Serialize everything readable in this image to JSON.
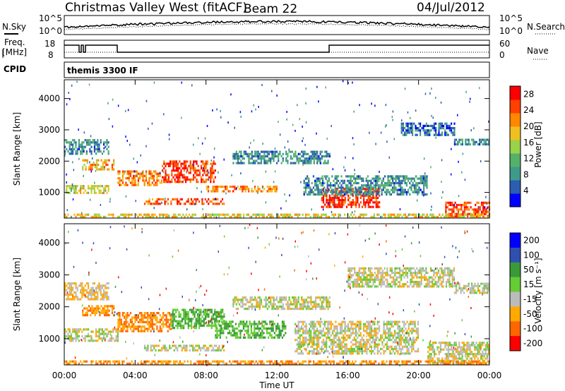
{
  "header": {
    "station": "Christmas Valley West (fitACF)",
    "beam": "Beam 22",
    "date": "04/Jul/2012"
  },
  "top_panels": {
    "nsky_label": "N.Sky",
    "nsky_ticks": [
      "10^5",
      "10^0"
    ],
    "nsearch_label": "N.Search",
    "freq_label_1": "Freq.",
    "freq_label_2": "[MHz]",
    "freq_ticks": [
      "18",
      "8"
    ],
    "nave_label": "Nave",
    "nave_ticks": [
      "60",
      "0"
    ],
    "cpid_label": "CPID",
    "cpid_value": "themis 3300 IF"
  },
  "colors": {
    "power": [
      "#0000ff",
      "#2b5db0",
      "#3e9a8a",
      "#55b06a",
      "#9ad24a",
      "#f0c020",
      "#ff8800",
      "#ff4000",
      "#ff0000"
    ],
    "velocity": [
      "#0000ff",
      "#3050b0",
      "#3a9a3a",
      "#66cc33",
      "#bbbbbb",
      "#ffaa00",
      "#ff6600",
      "#ff0000"
    ],
    "ground_scatter": "#bbbbbb"
  },
  "chart_data": [
    {
      "type": "heatmap",
      "name": "power",
      "ylabel": "Slant Range [km]",
      "xlabel": "",
      "y_ticks": [
        1000,
        2000,
        3000,
        4000
      ],
      "ylim": [
        180,
        4600
      ],
      "colorbar_label": "Power [dB]",
      "colorbar_ticks": [
        4,
        8,
        12,
        16,
        20,
        24,
        28
      ],
      "colorbar_range": [
        0,
        30
      ],
      "bands": [
        {
          "t0": 0.0,
          "t1": 2.5,
          "r0": 2200,
          "r1": 2700,
          "level": 8
        },
        {
          "t0": 1.0,
          "t1": 2.8,
          "r0": 1700,
          "r1": 2000,
          "level": 20
        },
        {
          "t0": 0.0,
          "t1": 2.5,
          "r0": 950,
          "r1": 1200,
          "level": 16
        },
        {
          "t0": 3.0,
          "t1": 5.5,
          "r0": 1200,
          "r1": 1700,
          "level": 22
        },
        {
          "t0": 5.5,
          "t1": 8.5,
          "r0": 1300,
          "r1": 2000,
          "level": 26
        },
        {
          "t0": 4.5,
          "t1": 9.0,
          "r0": 600,
          "r1": 800,
          "level": 24
        },
        {
          "t0": 8.0,
          "t1": 12.0,
          "r0": 1000,
          "r1": 1200,
          "level": 22
        },
        {
          "t0": 9.5,
          "t1": 15.0,
          "r0": 1900,
          "r1": 2300,
          "level": 8
        },
        {
          "t0": 14.5,
          "t1": 17.8,
          "r0": 500,
          "r1": 1100,
          "level": 27
        },
        {
          "t0": 13.5,
          "t1": 20.5,
          "r0": 900,
          "r1": 1500,
          "level": 8
        },
        {
          "t0": 19.0,
          "t1": 22.0,
          "r0": 2800,
          "r1": 3200,
          "level": 6
        },
        {
          "t0": 22.0,
          "t1": 24.0,
          "r0": 2500,
          "r1": 2700,
          "level": 8
        },
        {
          "t0": 21.5,
          "t1": 24.0,
          "r0": 200,
          "r1": 700,
          "level": 26
        },
        {
          "t0": 0.0,
          "t1": 24.0,
          "r0": 180,
          "r1": 320,
          "level": 18
        }
      ]
    },
    {
      "type": "heatmap",
      "name": "velocity",
      "ylabel": "Slant Range [km]",
      "xlabel": "Time UT",
      "x_ticks": [
        "00:00",
        "04:00",
        "08:00",
        "12:00",
        "16:00",
        "20:00",
        "00:00"
      ],
      "xlim_hours": [
        0,
        24
      ],
      "y_ticks": [
        1000,
        2000,
        3000,
        4000
      ],
      "ylim": [
        180,
        4600
      ],
      "colorbar_label": "Velocity [m s⁻¹]",
      "colorbar_ticks": [
        "200",
        "100",
        "50",
        "15",
        "-15",
        "-50",
        "-100",
        "-200"
      ],
      "bands": [
        {
          "t0": 0.0,
          "t1": 2.5,
          "r0": 2200,
          "r1": 2700,
          "level": -15
        },
        {
          "t0": 1.0,
          "t1": 2.8,
          "r0": 1700,
          "r1": 2000,
          "level": -50
        },
        {
          "t0": 0.0,
          "t1": 3.0,
          "r0": 900,
          "r1": 1300,
          "level": 0
        },
        {
          "t0": 3.0,
          "t1": 6.0,
          "r0": 1200,
          "r1": 1800,
          "level": -50
        },
        {
          "t0": 6.0,
          "t1": 9.0,
          "r0": 1300,
          "r1": 1900,
          "level": 50
        },
        {
          "t0": 4.5,
          "t1": 9.0,
          "r0": 600,
          "r1": 800,
          "level": 0
        },
        {
          "t0": 8.5,
          "t1": 12.5,
          "r0": 1000,
          "r1": 1500,
          "level": 50
        },
        {
          "t0": 9.5,
          "t1": 15.0,
          "r0": 1900,
          "r1": 2300,
          "level": 0
        },
        {
          "t0": 13.0,
          "t1": 20.0,
          "r0": 500,
          "r1": 1500,
          "level": 0
        },
        {
          "t0": 16.0,
          "t1": 22.0,
          "r0": 2600,
          "r1": 3200,
          "level": 0
        },
        {
          "t0": 22.0,
          "t1": 24.0,
          "r0": 2400,
          "r1": 2700,
          "level": 0
        },
        {
          "t0": 20.5,
          "t1": 24.0,
          "r0": 200,
          "r1": 900,
          "level": 0
        },
        {
          "t0": 0.0,
          "t1": 24.0,
          "r0": 180,
          "r1": 320,
          "level": -50
        }
      ]
    }
  ]
}
